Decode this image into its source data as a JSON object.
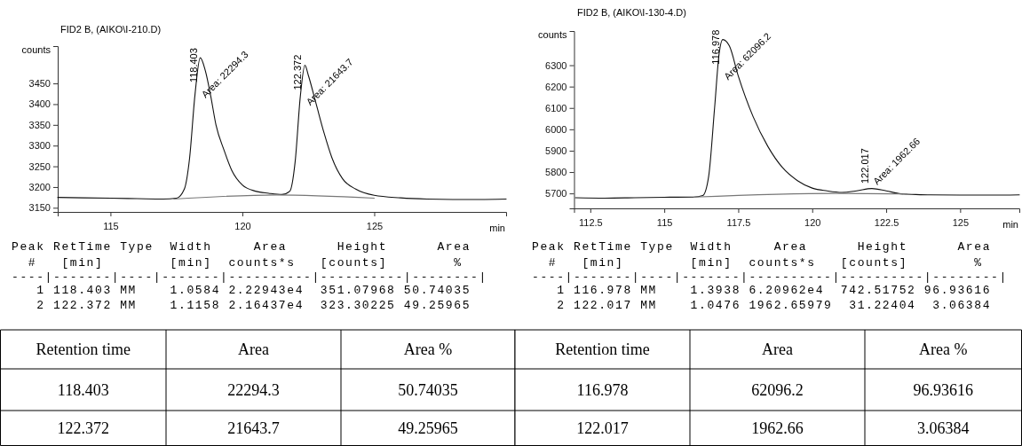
{
  "chart_data": [
    {
      "type": "line",
      "title": "FID2 B,  (AIKO\\I-210.D)",
      "xlabel": "min",
      "ylabel": "counts",
      "xlim": [
        113,
        130
      ],
      "ylim": [
        3140,
        3540
      ],
      "xticks": [
        115,
        120,
        125
      ],
      "yticks": [
        3150,
        3200,
        3250,
        3300,
        3350,
        3400,
        3450
      ],
      "series": [
        {
          "color": "#111111",
          "x": [
            113,
            114,
            115,
            116,
            117,
            117.5,
            117.8,
            118.0,
            118.2,
            118.403,
            118.6,
            118.8,
            119.0,
            119.3,
            119.6,
            120.0,
            120.5,
            121.0,
            121.5,
            121.8,
            122.0,
            122.2,
            122.372,
            122.5,
            122.8,
            123.1,
            123.4,
            123.8,
            124.3,
            125,
            126,
            127,
            128,
            129,
            130
          ],
          "values": [
            3175,
            3174,
            3173,
            3172,
            3171,
            3173,
            3195,
            3270,
            3420,
            3512,
            3480,
            3420,
            3350,
            3290,
            3240,
            3205,
            3190,
            3185,
            3182,
            3190,
            3260,
            3420,
            3494,
            3470,
            3400,
            3330,
            3270,
            3220,
            3195,
            3180,
            3174,
            3171,
            3170,
            3170,
            3171
          ]
        },
        {
          "color": "#777777",
          "x": [
            117.4,
            121.3,
            125
          ],
          "values": [
            3171,
            3181,
            3173
          ]
        }
      ],
      "annotations": [
        {
          "text": "118.403",
          "x": 118.403,
          "y": 3512
        },
        {
          "text": "Area: 22294.3",
          "x": 118.403,
          "y": 3512
        },
        {
          "text": "122.372",
          "x": 122.372,
          "y": 3494
        },
        {
          "text": "Area: 21643.7",
          "x": 122.372,
          "y": 3494
        },
        "Peak RetTime Type  Width     Area      Height      Area",
        "  #   [min]        [min]  counts*s   [counts]        %",
        "----|-------|----|-------|----------|----------|--------|",
        "   1 118.403 MM    1.0584 2.22943e4  351.07968 50.74035",
        "   2 122.372 MM    1.1158 2.16437e4  323.30225 49.25965",
        "Retention time",
        "Area",
        "Area %",
        "118.403",
        "22294.3",
        "50.74035",
        "122.372",
        "21643.7",
        "49.25965"
      ]
    },
    {
      "type": "line",
      "title": "FID2 B,  (AIKO\\I-130-4.D)",
      "xlabel": "min",
      "ylabel": "counts",
      "xlim": [
        111.95,
        127
      ],
      "ylim": [
        5630,
        6460
      ],
      "xticks": [
        112.5,
        115,
        117.5,
        120,
        122.5,
        125
      ],
      "yticks": [
        5700,
        5800,
        5900,
        6000,
        6100,
        6200,
        6300
      ],
      "series": [
        {
          "color": "#111111",
          "x": [
            112,
            113,
            114,
            115,
            116,
            116.3,
            116.5,
            116.7,
            116.85,
            116.978,
            117.2,
            117.5,
            118,
            118.5,
            119,
            119.5,
            120,
            120.5,
            121,
            121.5,
            122.017,
            122.5,
            123,
            123.5,
            124,
            125,
            126,
            127
          ],
          "values": [
            5680,
            5678,
            5680,
            5682,
            5683,
            5690,
            5780,
            6100,
            6350,
            6420,
            6390,
            6250,
            6060,
            5920,
            5820,
            5760,
            5725,
            5712,
            5705,
            5712,
            5723,
            5712,
            5698,
            5695,
            5693,
            5692,
            5692,
            5693
          ]
        },
        {
          "color": "#777777",
          "x": [
            116,
            120.8,
            123.2
          ],
          "values": [
            5683,
            5700,
            5697
          ]
        }
      ],
      "annotations": [
        {
          "text": "116.978",
          "x": 116.978,
          "y": 6420
        },
        {
          "text": "Area: 62096.2",
          "x": 116.978,
          "y": 6420
        },
        {
          "text": "122.017",
          "x": 122.017,
          "y": 5723
        },
        {
          "text": "Area: 1962.66",
          "x": 122.017,
          "y": 5723
        },
        "Peak RetTime Type  Width     Area      Height      Area",
        "  #   [min]        [min]  counts*s   [counts]        %",
        "----|-------|----|-------|----------|----------|--------|",
        "   1 116.978 MM    1.3938 6.20962e4  742.51752 96.93616",
        "   2 122.017 MM    1.0476 1962.65979  31.22404  3.06384",
        "Retention time",
        "Area",
        "Area %",
        "116.978",
        "62096.2",
        "96.93616",
        "122.017",
        "1962.66",
        "3.06384"
      ]
    }
  ]
}
